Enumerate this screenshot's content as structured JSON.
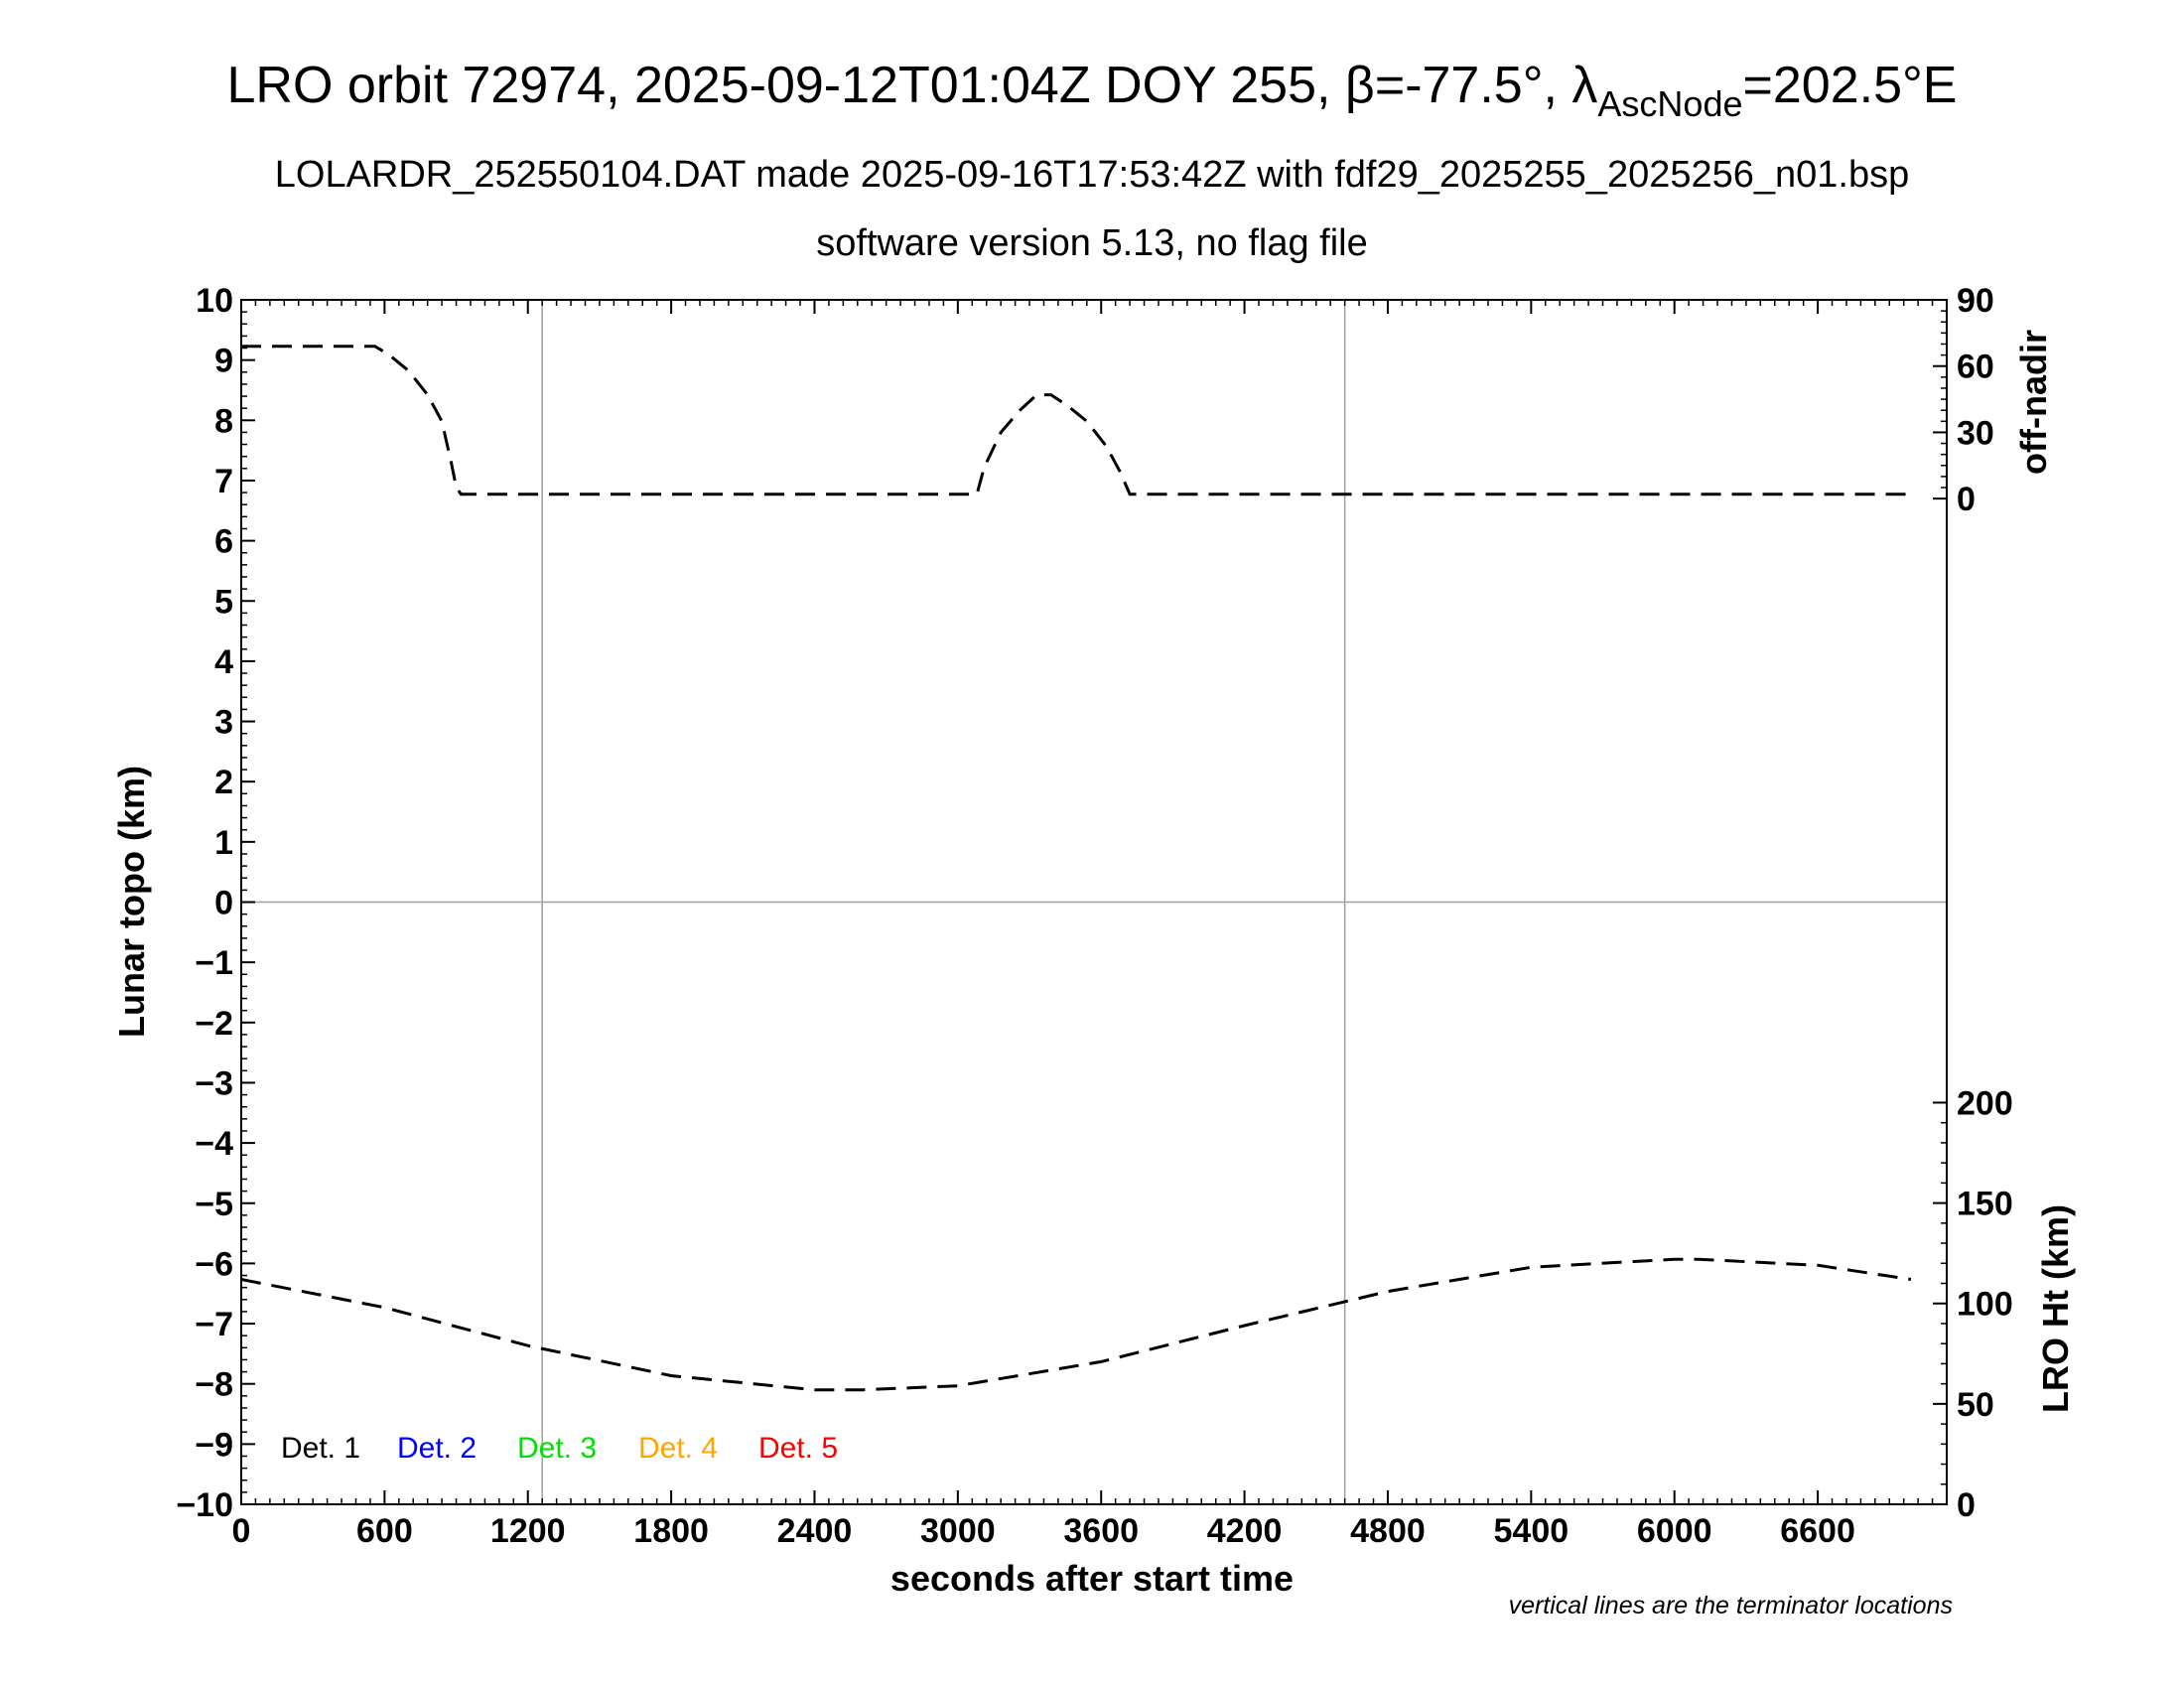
{
  "title": {
    "prefix": "LRO orbit 72974, 2025-09-12T01:04Z DOY 255, ",
    "beta_symbol": "β",
    "beta_value": "=-77.5°, ",
    "lambda_symbol": "λ",
    "lambda_sub": "AscNode",
    "lambda_value": "=202.5°E"
  },
  "subtitle1": "LOLARDR_252550104.DAT made 2025-09-16T17:53:42Z with fdf29_2025255_2025256_n01.bsp",
  "subtitle2": "software version 5.13, no flag file",
  "footnote": "vertical lines are the terminator locations",
  "chart_data": {
    "type": "line",
    "xlabel": "seconds after start time",
    "ylabel_left": "Lunar topo (km)",
    "ylabel_right_top": "off-nadir",
    "ylabel_right_bottom": "LRO Ht (km)",
    "xlim": [
      0,
      7140
    ],
    "ylim_left": [
      -10,
      10
    ],
    "x_ticks": [
      0,
      600,
      1200,
      1800,
      2400,
      3000,
      3600,
      4200,
      4800,
      5400,
      6000,
      6600
    ],
    "y_left_ticks": [
      "10",
      "9",
      "8",
      "7",
      "6",
      "5",
      "4",
      "3",
      "2",
      "1",
      "0",
      "−1",
      "−2",
      "−3",
      "−4",
      "−5",
      "−6",
      "−7",
      "−8",
      "−9",
      "−10"
    ],
    "y_left_values": [
      10,
      9,
      8,
      7,
      6,
      5,
      4,
      3,
      2,
      1,
      0,
      -1,
      -2,
      -3,
      -4,
      -5,
      -6,
      -7,
      -8,
      -9,
      -10
    ],
    "off_nadir_axis": {
      "ticks": [
        0,
        30,
        60,
        90
      ],
      "topo_at_0": 6.7,
      "topo_at_90": 10
    },
    "lro_ht_axis": {
      "ticks": [
        0,
        50,
        100,
        150,
        200
      ],
      "topo_at_0": -10,
      "topo_at_200": -3.33
    },
    "terminators": [
      1260,
      4620
    ],
    "grid": "zero line and terminator lines only",
    "legend": [
      "Det. 1",
      "Det. 2",
      "Det. 3",
      "Det. 4",
      "Det. 5"
    ],
    "legend_colors": [
      "#000000",
      "#0000ff",
      "#00e000",
      "#ffa500",
      "#ff0000"
    ],
    "legend_placement": "bottom-left",
    "series": [
      {
        "axis": "off-nadir",
        "style": "dashed",
        "x": [
          0,
          560,
          620,
          700,
          780,
          840,
          880,
          900,
          920,
          3080,
          3110,
          3180,
          3260,
          3330,
          3390,
          3460,
          3540,
          3620,
          3680,
          3720,
          3740,
          6990
        ],
        "y": [
          69,
          69,
          65,
          58,
          47,
          35,
          16,
          5,
          2,
          2,
          14,
          30,
          40,
          47,
          47,
          42,
          35,
          24,
          12,
          2,
          2,
          2
        ]
      },
      {
        "axis": "LRO Ht",
        "style": "dashed",
        "x": [
          0,
          600,
          1200,
          1800,
          2400,
          2600,
          3000,
          3600,
          4200,
          4800,
          5400,
          6000,
          6100,
          6600,
          6990
        ],
        "y": [
          112,
          98,
          79,
          64,
          57,
          57,
          59,
          71,
          89,
          106,
          118,
          122,
          122,
          119,
          112
        ]
      }
    ]
  }
}
